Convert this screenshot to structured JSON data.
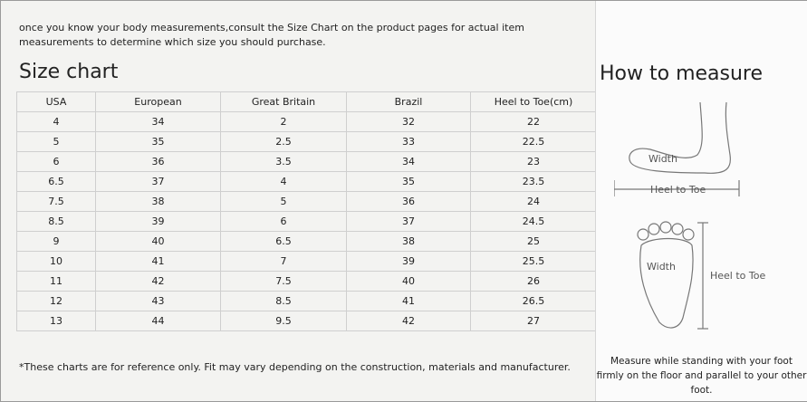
{
  "intro": "once you know your body measurements,consult the Size Chart on the product pages for actual item measurements to determine which size you should purchase.",
  "size_chart": {
    "title": "Size chart",
    "table": {
      "header": [
        "USA",
        "European",
        "Great Britain",
        "Brazil",
        "Heel to Toe(cm)"
      ],
      "rows": [
        [
          "4",
          "34",
          "2",
          "32",
          "22"
        ],
        [
          "5",
          "35",
          "2.5",
          "33",
          "22.5"
        ],
        [
          "6",
          "36",
          "3.5",
          "34",
          "23"
        ],
        [
          "6.5",
          "37",
          "4",
          "35",
          "23.5"
        ],
        [
          "7.5",
          "38",
          "5",
          "36",
          "24"
        ],
        [
          "8.5",
          "39",
          "6",
          "37",
          "24.5"
        ],
        [
          "9",
          "40",
          "6.5",
          "38",
          "25"
        ],
        [
          "10",
          "41",
          "7",
          "39",
          "25.5"
        ],
        [
          "11",
          "42",
          "7.5",
          "40",
          "26"
        ],
        [
          "12",
          "43",
          "8.5",
          "41",
          "26.5"
        ],
        [
          "13",
          "44",
          "9.5",
          "42",
          "27"
        ]
      ]
    }
  },
  "note": "*These charts are for reference only. Fit may vary depending on the construction, materials and manufacturer.",
  "how_to_measure": {
    "title": "How to measure",
    "labels": {
      "side_width": "Width",
      "side_heel_to_toe": "Heel to Toe",
      "top_width": "Width",
      "top_heel_to_toe": "Heel to Toe"
    },
    "instruction": "Measure while standing with your foot firmly on the floor and parallel to your other foot."
  }
}
